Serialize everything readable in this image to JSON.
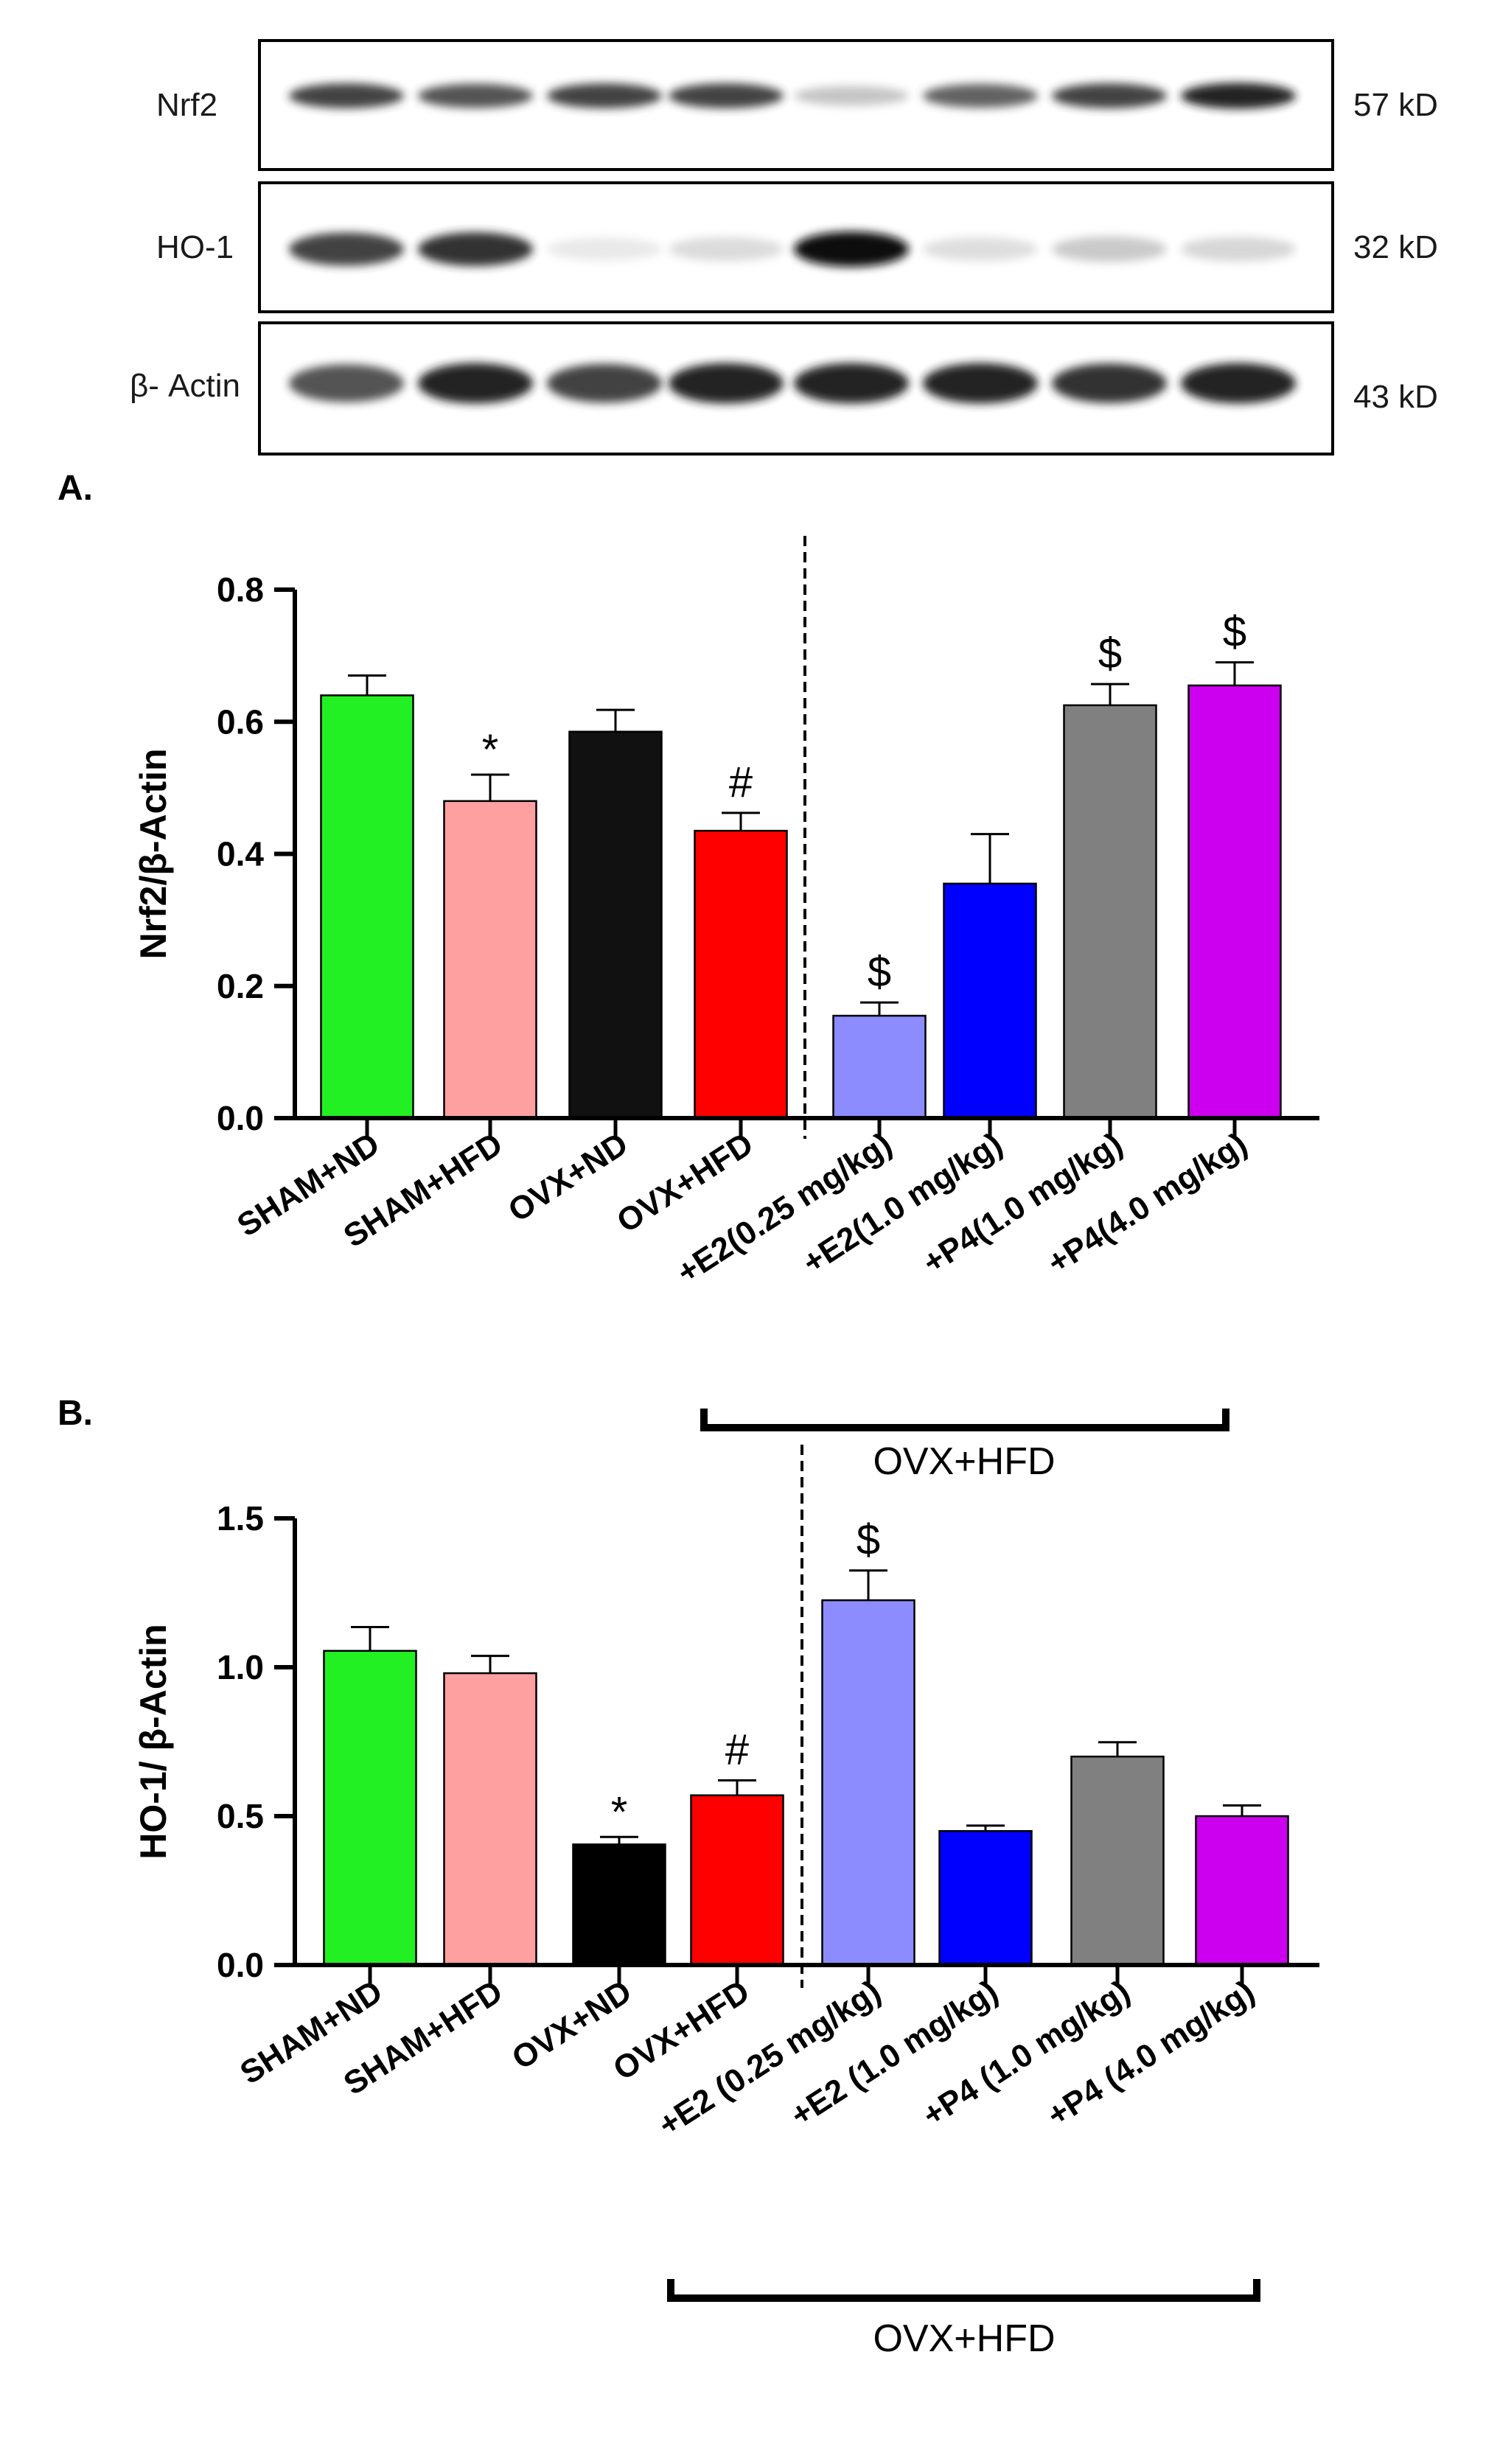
{
  "blot": {
    "rows": [
      {
        "protein": "Nrf2",
        "size": "57 kD",
        "intensities": [
          0.85,
          0.8,
          0.85,
          0.85,
          0.35,
          0.75,
          0.85,
          0.95
        ]
      },
      {
        "protein": "HO-1",
        "size": "32 kD",
        "intensities": [
          0.85,
          0.9,
          0.12,
          0.22,
          1.0,
          0.2,
          0.32,
          0.25
        ]
      },
      {
        "protein": "β- Actin",
        "size": "43 kD",
        "intensities": [
          0.8,
          0.95,
          0.85,
          0.95,
          0.95,
          0.95,
          0.9,
          0.95
        ]
      }
    ]
  },
  "chart_data": [
    {
      "type": "bar",
      "panel": "A.",
      "title": "",
      "ylabel": "Nrf2/β-Actin",
      "ylim": [
        0,
        0.8
      ],
      "yticks": [
        "0.0",
        "0.2",
        "0.4",
        "0.6",
        "0.8"
      ],
      "categories": [
        "SHAM+ND",
        "SHAM+HFD",
        "OVX+ND",
        "OVX+HFD",
        "+E2(0.25 mg/kg)",
        "+E2(1.0 mg/kg)",
        "+P4(1.0 mg/kg)",
        "+P4(4.0 mg/kg)"
      ],
      "values": [
        0.64,
        0.48,
        0.585,
        0.435,
        0.155,
        0.355,
        0.625,
        0.655
      ],
      "errors": [
        0.03,
        0.04,
        0.033,
        0.027,
        0.02,
        0.075,
        0.032,
        0.035
      ],
      "colors": [
        "#22f022",
        "#ffa0a0",
        "#111111",
        "#ff0000",
        "#8c8cff",
        "#0000ff",
        "#808080",
        "#cc00ee"
      ],
      "significance": [
        "",
        "*",
        "",
        "#",
        "$",
        "",
        "$",
        "$"
      ],
      "bracket_label": "OVX+HFD"
    },
    {
      "type": "bar",
      "panel": "B.",
      "title": "",
      "ylabel": "HO-1/ β-Actin",
      "ylim": [
        0,
        1.5
      ],
      "yticks": [
        "0.0",
        "0.5",
        "1.0",
        "1.5"
      ],
      "categories": [
        "SHAM+ND",
        "SHAM+HFD",
        "OVX+ND",
        "OVX+HFD",
        "+E2 (0.25 mg/kg)",
        "+E2 (1.0 mg/kg)",
        "+P4 (1.0 mg/kg)",
        "+P4 (4.0 mg/kg)"
      ],
      "values": [
        1.055,
        0.98,
        0.405,
        0.57,
        1.225,
        0.45,
        0.7,
        0.5
      ],
      "errors": [
        0.08,
        0.058,
        0.025,
        0.05,
        0.1,
        0.018,
        0.048,
        0.036
      ],
      "colors": [
        "#22f022",
        "#ffa0a0",
        "#000000",
        "#ff0000",
        "#8c8cff",
        "#0000ff",
        "#808080",
        "#cc00ee"
      ],
      "significance": [
        "",
        "",
        "*",
        "#",
        "$",
        "",
        "",
        ""
      ],
      "bracket_label": "OVX+HFD"
    }
  ]
}
